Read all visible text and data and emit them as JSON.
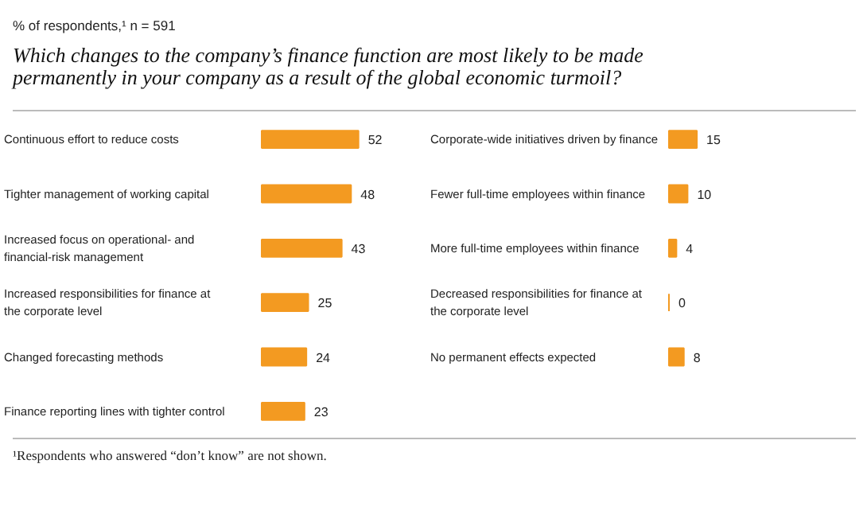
{
  "chart_data": [
    {
      "type": "bar",
      "orientation": "horizontal",
      "subtitle": "% of respondents,¹ n = 591",
      "title": "Which changes to the company’s finance function are most likely to be made permanently in your company as a result of the global economic turmoil?",
      "annotations": [
        "¹Respondents who answered “don’t know” are not shown."
      ],
      "categories": [
        "Continuous effort to reduce costs",
        "Tighter management of working capital",
        "Increased focus on operational- and financial-risk management",
        "Increased responsibilities for finance at the corporate level",
        "Changed forecasting methods",
        "Finance reporting lines with tighter control"
      ],
      "values": [
        52,
        48,
        43,
        25,
        24,
        23
      ],
      "color": "#f39a21",
      "data_labels": true
    },
    {
      "type": "bar",
      "orientation": "horizontal",
      "categories": [
        "Corporate-wide initiatives driven by finance",
        "Fewer full-time employees within finance",
        "More full-time employees within finance",
        "Decreased responsibilities for finance at the corporate level",
        "No permanent effects expected"
      ],
      "values": [
        15,
        10,
        4,
        0,
        8
      ],
      "color": "#f39a21",
      "data_labels": true
    }
  ]
}
